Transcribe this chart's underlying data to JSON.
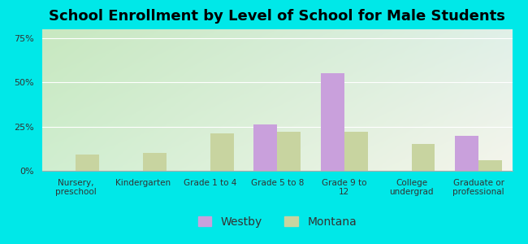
{
  "title": "School Enrollment by Level of School for Male Students",
  "categories": [
    "Nursery,\npreschool",
    "Kindergarten",
    "Grade 1 to 4",
    "Grade 5 to 8",
    "Grade 9 to\n12",
    "College\nundergrad",
    "Graduate or\nprofessional"
  ],
  "westby": [
    0,
    0,
    0,
    26,
    55,
    0,
    20
  ],
  "montana": [
    9,
    10,
    21,
    22,
    22,
    15,
    6
  ],
  "westby_color": "#c9a0dc",
  "montana_color": "#c8d4a0",
  "background_outer": "#00e8e8",
  "yticks": [
    0,
    25,
    50,
    75
  ],
  "ytick_labels": [
    "0%",
    "25%",
    "50%",
    "75%"
  ],
  "title_fontsize": 13,
  "legend_labels": [
    "Westby",
    "Montana"
  ],
  "ylim": [
    0,
    80
  ],
  "bar_width": 0.35,
  "legend_fontsize": 10
}
